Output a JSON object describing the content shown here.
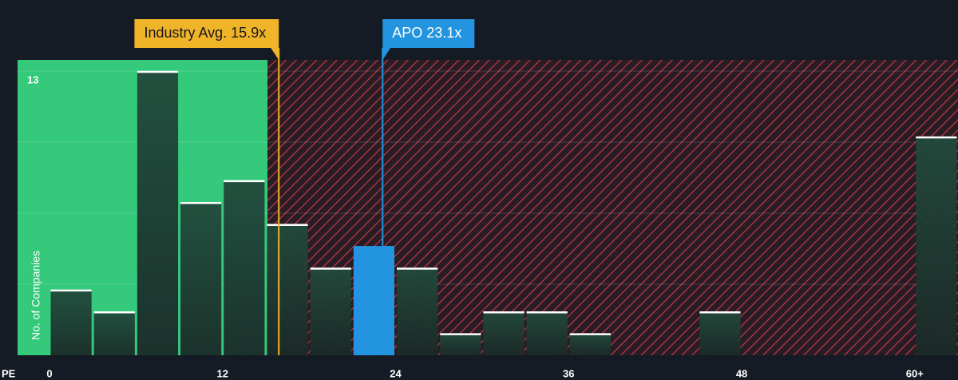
{
  "chart_data": {
    "type": "histogram",
    "xlabel": "PE",
    "ylabel": "No. of Companies",
    "bins": [
      0,
      3,
      6,
      9,
      12,
      15,
      18,
      21,
      24,
      27,
      30,
      33,
      36,
      39,
      42,
      45,
      48,
      51,
      54,
      57,
      60,
      63
    ],
    "values": [
      3,
      2,
      13,
      7,
      8,
      6,
      4,
      5,
      4,
      1,
      2,
      2,
      1,
      0,
      0,
      2,
      0,
      0,
      0,
      0,
      10
    ],
    "xlim": [
      0,
      63
    ],
    "ylim": [
      0,
      13
    ],
    "xticks": [
      0,
      12,
      24,
      36,
      48,
      {
        "value": 60,
        "label": "60+"
      }
    ],
    "yticks": [
      13
    ],
    "color": "#1f4a3a",
    "highlight_color": "#2394e0",
    "annotations": [
      {
        "label": "Industry Avg. 15.9x",
        "value": 15.9,
        "color": "#f0b429"
      },
      {
        "label": "APO 23.1x",
        "value": 23.1,
        "color": "#2394e0"
      }
    ]
  }
}
